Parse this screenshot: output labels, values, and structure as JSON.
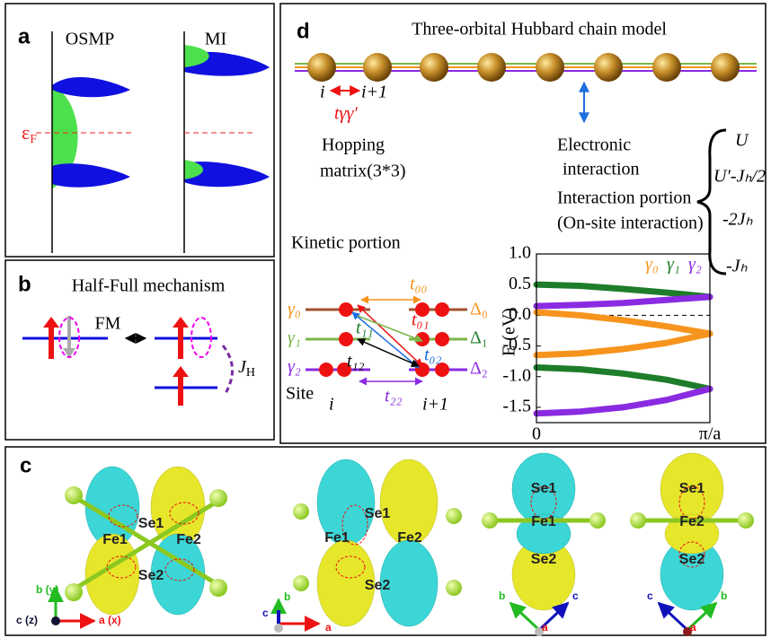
{
  "figure": {
    "a": {
      "label": "a",
      "osmp": "OSMP",
      "mi": "MI",
      "fermi": {
        "base": "ε",
        "sub": "F"
      }
    },
    "b": {
      "label": "b",
      "title": "Half-Full mechanism",
      "fm": "FM",
      "jh": {
        "base": "J",
        "sub": "H"
      }
    },
    "c": {
      "label": "c",
      "views": [
        {
          "atoms": [
            "Se1",
            "Fe1",
            "Fe2",
            "Se2"
          ],
          "axes": [
            "b (y)",
            "c (z)",
            "a (x)"
          ]
        },
        {
          "atoms": [
            "Se1",
            "Fe1",
            "Fe2",
            "Se2"
          ],
          "axes": [
            "b",
            "c",
            "a"
          ]
        },
        {
          "atoms": [
            "Se1",
            "Fe1",
            "Se2"
          ],
          "axes": [
            "b",
            "c",
            "a"
          ]
        },
        {
          "atoms": [
            "Se1",
            "Fe2",
            "Se2"
          ],
          "axes": [
            "c",
            "b",
            "a"
          ]
        }
      ]
    },
    "d": {
      "label": "d",
      "title": "Three-orbital Hubbard chain model",
      "site_i": "i",
      "site_i1": "i+1",
      "hop_t": "tγγ′",
      "hopping": [
        "Hopping",
        "matrix(3*3)"
      ],
      "electronic": [
        "Electronic",
        "interaction"
      ],
      "interaction": [
        "Interaction portion",
        "(On-site interaction)"
      ],
      "terms": [
        "U",
        "U′-Jₕ/2",
        "-2Jₕ",
        "-Jₕ"
      ],
      "kinetic": "Kinetic portion",
      "orbitals": [
        "γ₀",
        "γ₁",
        "γ₂"
      ],
      "levels": [
        "Δ₀",
        "Δ₁",
        "Δ₂"
      ],
      "hoppings": [
        "t₀₀",
        "t₁₁",
        "t₀₁",
        "t₀₂",
        "t₁₂",
        "t₂₂"
      ],
      "site": "Site",
      "i": "i",
      "i1": "i+1"
    }
  },
  "chart_data": {
    "type": "line",
    "ylabel": "E (eV)",
    "x": [
      0,
      0.25,
      0.5,
      0.75,
      1
    ],
    "xlim": [
      0,
      1
    ],
    "xticks": [
      0,
      {
        "value": 1,
        "label": "π/a"
      }
    ],
    "ylim": [
      -1.75,
      1.0
    ],
    "yticks": [
      1.0,
      0.5,
      0.0,
      -0.5,
      -1.0,
      -1.5
    ],
    "yticklabels": [
      "1.0",
      "0.5",
      "0.0",
      "-0.5",
      "-1.0",
      "-1.5"
    ],
    "series": [
      {
        "name": "γ₀",
        "color": "#f7941d",
        "values": [
          0.05,
          0.0,
          -0.08,
          -0.18,
          -0.3
        ]
      },
      {
        "name": "γ₁",
        "color": "#1e7d2a",
        "values": [
          0.5,
          0.48,
          0.43,
          0.37,
          0.3
        ]
      },
      {
        "name": "γ₂",
        "color": "#8a2be2",
        "values": [
          0.15,
          0.17,
          0.2,
          0.25,
          0.3
        ]
      },
      {
        "name": "γ₀",
        "color": "#f7941d",
        "values": [
          -0.65,
          -0.62,
          -0.55,
          -0.45,
          -0.3
        ]
      },
      {
        "name": "γ₁",
        "color": "#1e7d2a",
        "values": [
          -0.85,
          -0.88,
          -0.95,
          -1.05,
          -1.2
        ]
      },
      {
        "name": "γ₂",
        "color": "#8a2be2",
        "values": [
          -1.6,
          -1.57,
          -1.5,
          -1.38,
          -1.2
        ]
      }
    ]
  }
}
